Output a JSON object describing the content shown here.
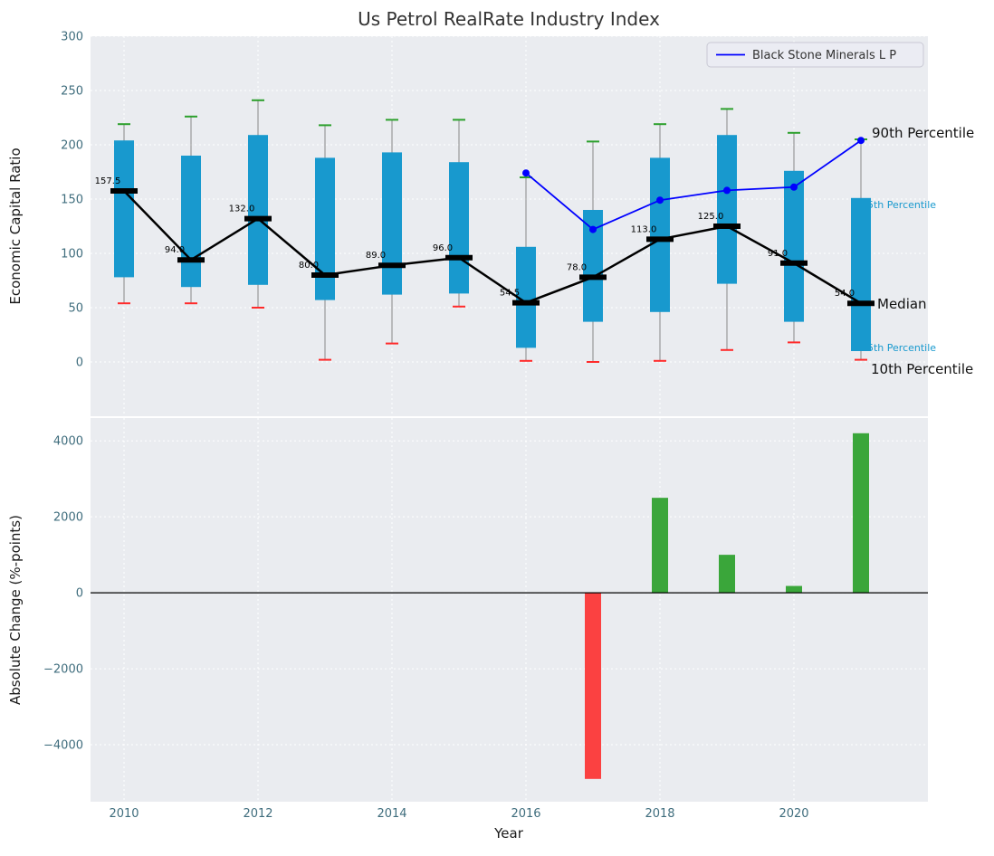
{
  "title": "Us Petrol RealRate Industry Index",
  "legend": {
    "entries": [
      {
        "label": "Black Stone Minerals L P",
        "color": "#0000ff"
      }
    ]
  },
  "annotations": {
    "p90_label": "90th Percentile",
    "p75_label": "75th Percentile",
    "median_label": "Median",
    "p25_label": "25th Percentile",
    "p10_label": "10th Percentile"
  },
  "colors": {
    "figure_bg": "#ffffff",
    "axes_bg": "#eaecf0",
    "grid": "#ffffff",
    "tick": "#3f6d7d",
    "title": "#333333",
    "axis_label": "#1a1a1a",
    "whisker": "#888888",
    "box": "#1899ce",
    "cap_top": "#2ca02c",
    "cap_bottom": "#ff2a2a",
    "median": "#000000",
    "median_trend": "#000000",
    "annotation_black": "#111111",
    "annotation_cyan": "#1899ce",
    "legend_bg": "#ebecf3",
    "legend_border": "#c9c9d4",
    "legend_text": "#333333",
    "zero_line": "#000000"
  },
  "chart_data": [
    {
      "type": "boxplot+line",
      "title": "Us Petrol RealRate Industry Index",
      "ylabel": "Economic Capital Ratio",
      "ylim": [
        -50,
        300
      ],
      "yticks": [
        0,
        50,
        100,
        150,
        200,
        250,
        300
      ],
      "xlim": [
        2009.5,
        2022
      ],
      "xticks": [
        2010,
        2012,
        2014,
        2016,
        2018,
        2020
      ],
      "grid": true,
      "legend_position": "upper right",
      "years": [
        2010,
        2011,
        2012,
        2013,
        2014,
        2015,
        2016,
        2017,
        2018,
        2019,
        2020,
        2021
      ],
      "p10": [
        54,
        54,
        50,
        2,
        17,
        51,
        1,
        0,
        1,
        11,
        18,
        2
      ],
      "p25": [
        78,
        69,
        71,
        57,
        62,
        63,
        13,
        37,
        46,
        72,
        37,
        10
      ],
      "median": [
        157.5,
        94.0,
        132.0,
        80.0,
        89.0,
        96.0,
        54.5,
        78.0,
        113.0,
        125.0,
        91.0,
        54.0
      ],
      "p75": [
        204,
        190,
        209,
        188,
        193,
        184,
        106,
        140,
        188,
        209,
        176,
        151
      ],
      "p90": [
        219,
        226,
        241,
        218,
        223,
        223,
        170,
        203,
        219,
        233,
        211,
        205
      ],
      "series": [
        {
          "name": "Black Stone Minerals L P",
          "x": [
            2016,
            2017,
            2018,
            2019,
            2020,
            2021
          ],
          "y": [
            174,
            122,
            149,
            158,
            161,
            204
          ],
          "color": "#0000ff"
        }
      ]
    },
    {
      "type": "bar",
      "ylabel": "Absolute Change (%-points)",
      "xlabel": "Year",
      "ylim": [
        -5500,
        4600
      ],
      "yticks": [
        -4000,
        -2000,
        0,
        2000,
        4000
      ],
      "xlim": [
        2009.5,
        2022
      ],
      "xticks": [
        2010,
        2012,
        2014,
        2016,
        2018,
        2020
      ],
      "grid": true,
      "years": [
        2017,
        2018,
        2019,
        2020,
        2021
      ],
      "values": [
        -4900,
        2500,
        1000,
        180,
        4200
      ],
      "bar_color_positive": "#3aa63a",
      "bar_color_negative": "#fb4141"
    }
  ]
}
